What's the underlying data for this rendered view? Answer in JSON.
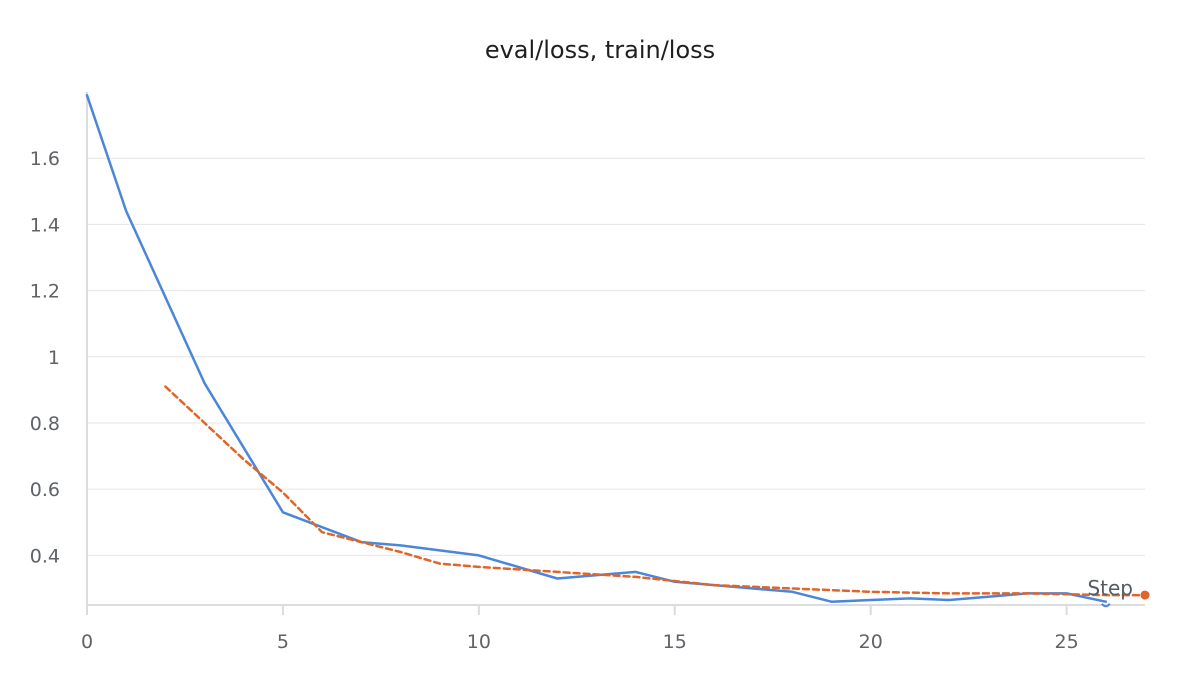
{
  "chart_data": {
    "type": "line",
    "title": "eval/loss, train/loss",
    "xlabel": "Step",
    "ylabel": "",
    "xlim": [
      0,
      27
    ],
    "ylim": [
      0.25,
      1.8
    ],
    "x_ticks": [
      0,
      5,
      10,
      15,
      20,
      25
    ],
    "y_ticks": [
      0.4,
      0.6,
      0.8,
      1,
      1.2,
      1.4,
      1.6
    ],
    "grid": true,
    "series": [
      {
        "name": "train/loss",
        "color": "#4a86d9",
        "style": "solid",
        "x": [
          0,
          1,
          3,
          5,
          7,
          8,
          10,
          12,
          14,
          15,
          17,
          18,
          19,
          20,
          21,
          22,
          23,
          24,
          25,
          26
        ],
        "y": [
          1.79,
          1.44,
          0.92,
          0.53,
          0.44,
          0.43,
          0.4,
          0.33,
          0.35,
          0.32,
          0.3,
          0.29,
          0.26,
          0.265,
          0.27,
          0.265,
          0.275,
          0.285,
          0.285,
          0.26
        ]
      },
      {
        "name": "eval/loss",
        "color": "#e0652a",
        "style": "dashed",
        "x": [
          2,
          3,
          4,
          5,
          6,
          7,
          8,
          9,
          10,
          12,
          14,
          16,
          18,
          20,
          22,
          24,
          26,
          27
        ],
        "y": [
          0.91,
          0.8,
          0.69,
          0.59,
          0.47,
          0.44,
          0.41,
          0.375,
          0.365,
          0.35,
          0.335,
          0.31,
          0.3,
          0.29,
          0.285,
          0.285,
          0.28,
          0.28
        ]
      }
    ]
  }
}
